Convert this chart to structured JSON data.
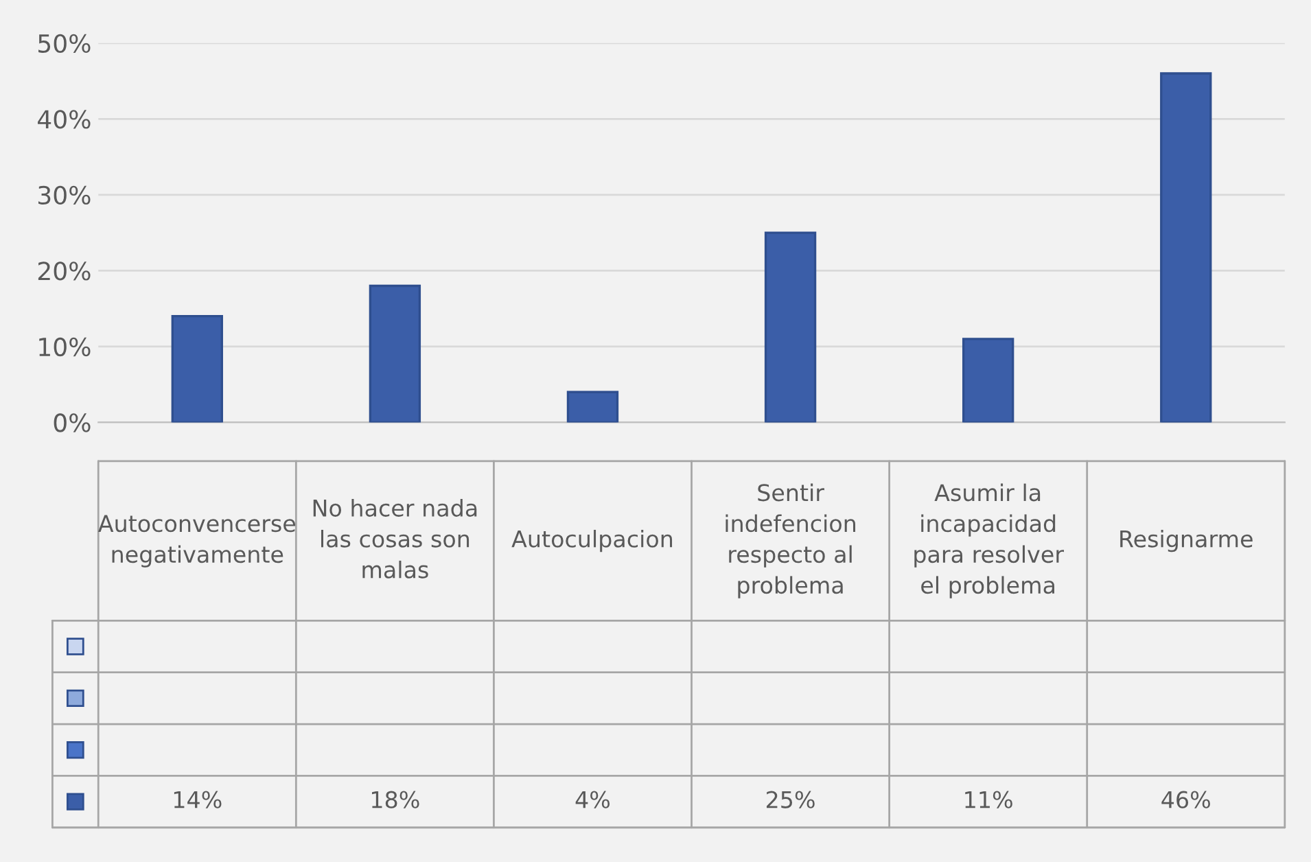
{
  "chart_data": {
    "type": "bar",
    "categories": [
      "Autoconvencerse negativamente",
      "No hacer nada las cosas son malas",
      "Autoculpacion",
      "Sentir indefencion respecto al problema",
      "Asumir la incapacidad para resolver el problema",
      "Resignarme"
    ],
    "series": [
      {
        "color": "#c9d6f0",
        "values": [
          null,
          null,
          null,
          null,
          null,
          null
        ]
      },
      {
        "color": "#8eaadc",
        "values": [
          null,
          null,
          null,
          null,
          null,
          null
        ]
      },
      {
        "color": "#4a74c8",
        "values": [
          null,
          null,
          null,
          null,
          null,
          null
        ]
      },
      {
        "color": "#3b5ea8",
        "values": [
          14,
          18,
          4,
          25,
          11,
          46
        ],
        "value_labels": [
          "14%",
          "18%",
          "4%",
          "25%",
          "11%",
          "46%"
        ]
      }
    ],
    "ylim": [
      0,
      50
    ],
    "yticks": [
      {
        "value": 0,
        "label": "0%"
      },
      {
        "value": 10,
        "label": "10%"
      },
      {
        "value": 20,
        "label": "20%"
      },
      {
        "value": 30,
        "label": "30%"
      },
      {
        "value": 40,
        "label": "40%"
      },
      {
        "value": 50,
        "label": "50%"
      }
    ],
    "grid": "y"
  }
}
